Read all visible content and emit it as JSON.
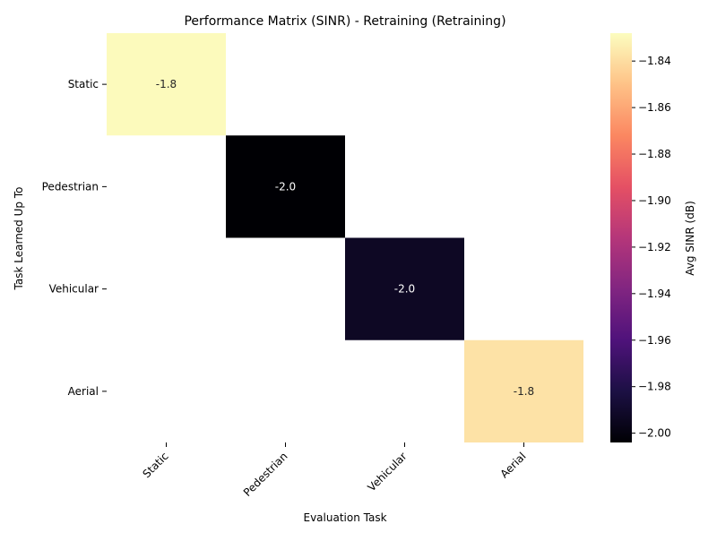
{
  "chart_data": {
    "type": "heatmap",
    "title": "Performance Matrix (SINR) - Retraining (Retraining)",
    "xlabel": "Evaluation Task",
    "ylabel": "Task Learned Up To",
    "x_categories": [
      "Static",
      "Pedestrian",
      "Vehicular",
      "Aerial"
    ],
    "y_categories": [
      "Static",
      "Pedestrian",
      "Vehicular",
      "Aerial"
    ],
    "cells": [
      {
        "row": 0,
        "col": 0,
        "value": -1.829,
        "label": "-1.8"
      },
      {
        "row": 1,
        "col": 1,
        "value": -2.004,
        "label": "-2.0"
      },
      {
        "row": 2,
        "col": 2,
        "value": -1.993,
        "label": "-2.0"
      },
      {
        "row": 3,
        "col": 3,
        "value": -1.838,
        "label": "-1.8"
      }
    ],
    "colormap": "magma",
    "colorbar": {
      "label": "Avg SINR (dB)",
      "min": -2.004,
      "max": -1.828,
      "ticks": [
        -2.0,
        -1.98,
        -1.96,
        -1.94,
        -1.92,
        -1.9,
        -1.88,
        -1.86,
        -1.84
      ],
      "tick_labels": [
        "−2.00",
        "−1.98",
        "−1.96",
        "−1.94",
        "−1.92",
        "−1.90",
        "−1.88",
        "−1.86",
        "−1.84"
      ]
    }
  }
}
